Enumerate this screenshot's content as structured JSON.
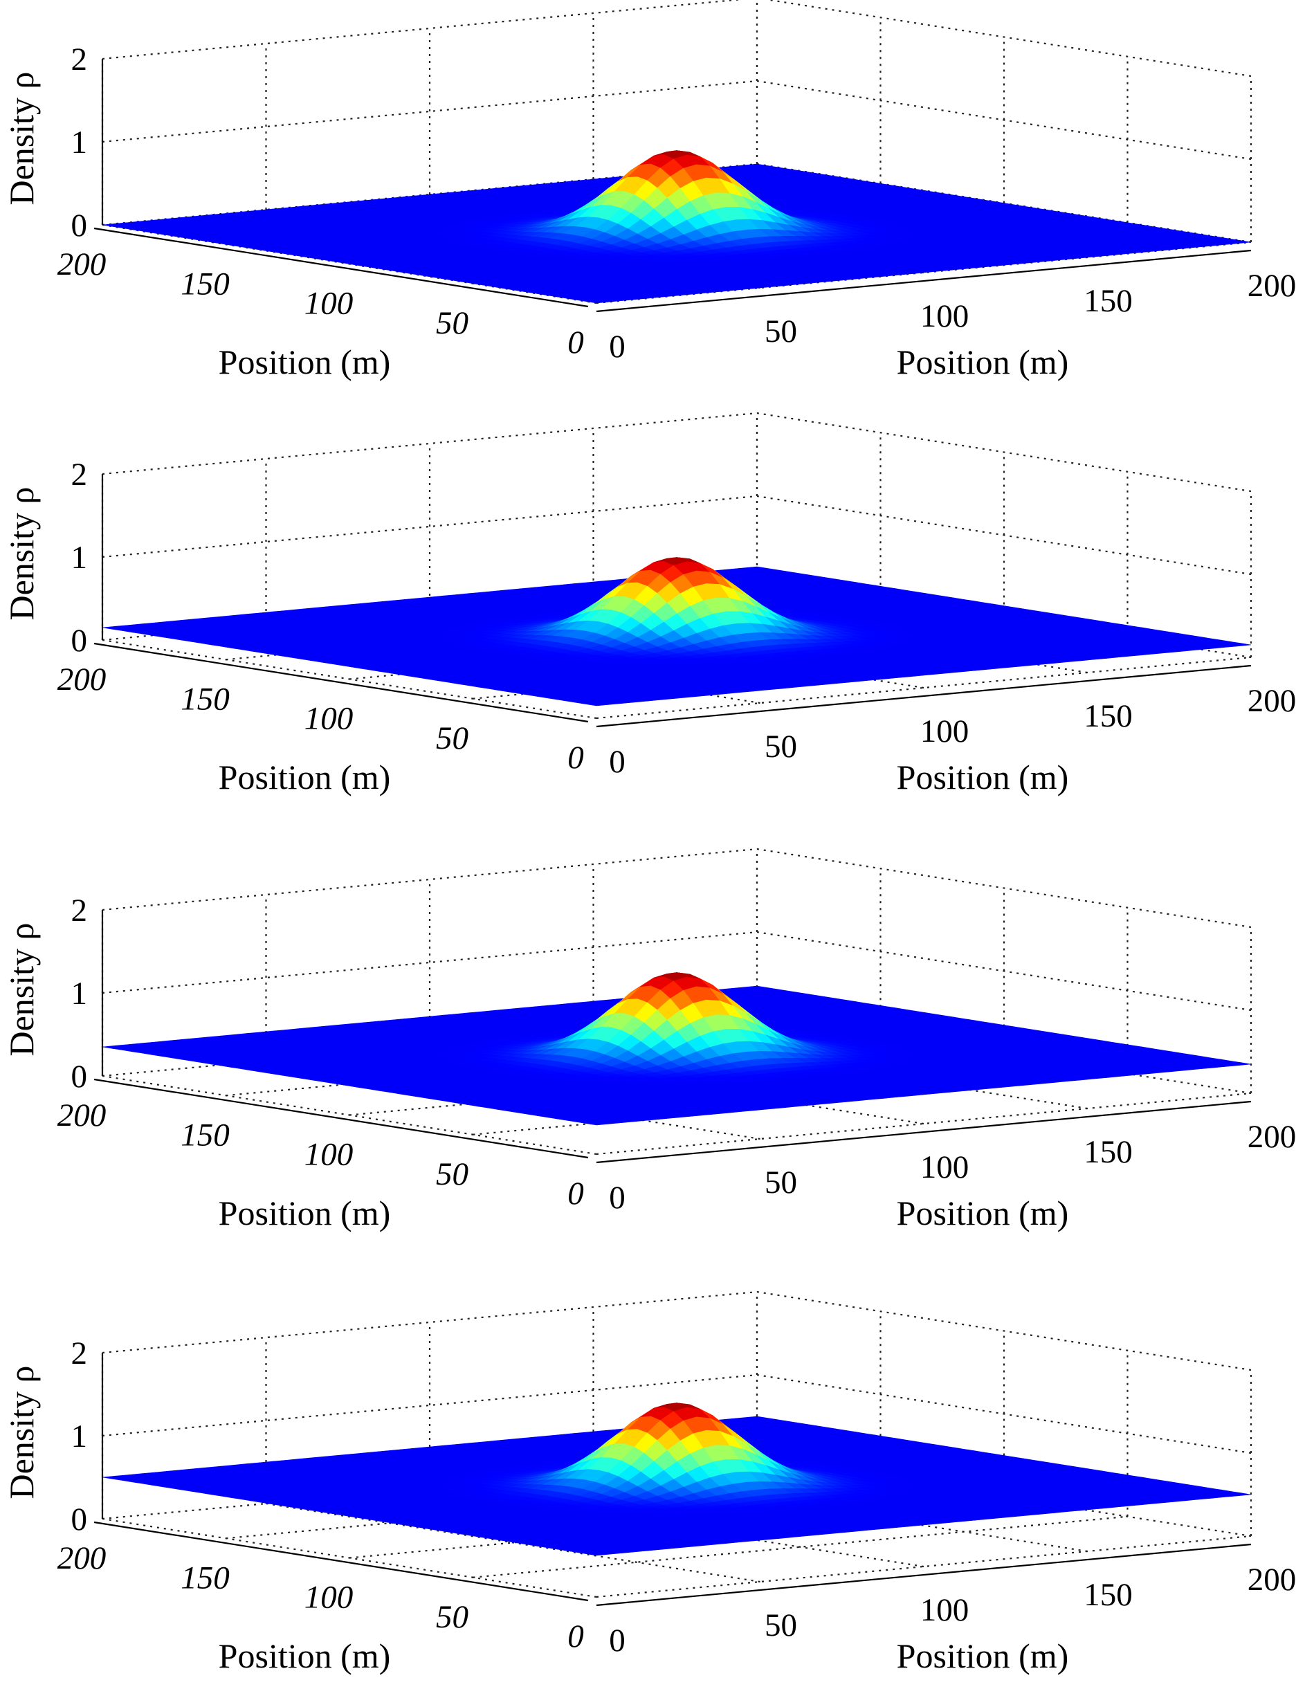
{
  "figure": {
    "panels": [
      {
        "x_axis_label": "Position (m)",
        "y_axis_label": "Position (m)",
        "z_axis_label": "Density ρ",
        "x_ticks": [
          "0",
          "50",
          "100",
          "150",
          "200"
        ],
        "y_ticks": [
          "0",
          "50",
          "100",
          "150",
          "200"
        ],
        "z_ticks": [
          "0",
          "1",
          "2"
        ]
      },
      {
        "x_axis_label": "Position (m)",
        "y_axis_label": "Position (m)",
        "z_axis_label": "Density ρ",
        "x_ticks": [
          "0",
          "50",
          "100",
          "150",
          "200"
        ],
        "y_ticks": [
          "0",
          "50",
          "100",
          "150",
          "200"
        ],
        "z_ticks": [
          "0",
          "1",
          "2"
        ]
      },
      {
        "x_axis_label": "Position (m)",
        "y_axis_label": "Position (m)",
        "z_axis_label": "Density ρ",
        "x_ticks": [
          "0",
          "50",
          "100",
          "150",
          "200"
        ],
        "y_ticks": [
          "0",
          "50",
          "100",
          "150",
          "200"
        ],
        "z_ticks": [
          "0",
          "1",
          "2"
        ]
      },
      {
        "x_axis_label": "Position (m)",
        "y_axis_label": "Position (m)",
        "z_axis_label": "Density ρ",
        "x_ticks": [
          "0",
          "50",
          "100",
          "150",
          "200"
        ],
        "y_ticks": [
          "0",
          "50",
          "100",
          "150",
          "200"
        ],
        "z_ticks": [
          "0",
          "1",
          "2"
        ]
      }
    ]
  },
  "chart_data": [
    {
      "type": "surface",
      "title": "",
      "xlabel": "Position (m)",
      "ylabel": "Position (m)",
      "zlabel": "Density ρ",
      "xlim": [
        0,
        200
      ],
      "ylim": [
        0,
        200
      ],
      "zlim": [
        0,
        2
      ],
      "grid": true,
      "colormap": "jet",
      "surface": {
        "shape": "gaussian",
        "center": [
          100,
          100
        ],
        "peak": 1.0,
        "sigma": 15,
        "background": 0.0
      }
    },
    {
      "type": "surface",
      "title": "",
      "xlabel": "Position (m)",
      "ylabel": "Position (m)",
      "zlabel": "Density ρ",
      "xlim": [
        0,
        200
      ],
      "ylim": [
        0,
        200
      ],
      "zlim": [
        0,
        2
      ],
      "grid": true,
      "colormap": "jet",
      "surface": {
        "shape": "gaussian",
        "center": [
          100,
          100
        ],
        "peak": 1.1,
        "sigma": 15,
        "background": 0.15
      }
    },
    {
      "type": "surface",
      "title": "",
      "xlabel": "Position (m)",
      "ylabel": "Position (m)",
      "zlabel": "Density ρ",
      "xlim": [
        0,
        200
      ],
      "ylim": [
        0,
        200
      ],
      "zlim": [
        0,
        2
      ],
      "grid": true,
      "colormap": "jet",
      "surface": {
        "shape": "gaussian",
        "center": [
          100,
          100
        ],
        "peak": 1.35,
        "sigma": 15,
        "background": 0.35
      }
    },
    {
      "type": "surface",
      "title": "",
      "xlabel": "Position (m)",
      "ylabel": "Position (m)",
      "zlabel": "Density ρ",
      "xlim": [
        0,
        200
      ],
      "ylim": [
        0,
        200
      ],
      "zlim": [
        0,
        2
      ],
      "grid": true,
      "colormap": "jet",
      "surface": {
        "shape": "gaussian",
        "center": [
          100,
          100
        ],
        "peak": 1.5,
        "sigma": 15,
        "background": 0.5
      }
    }
  ]
}
